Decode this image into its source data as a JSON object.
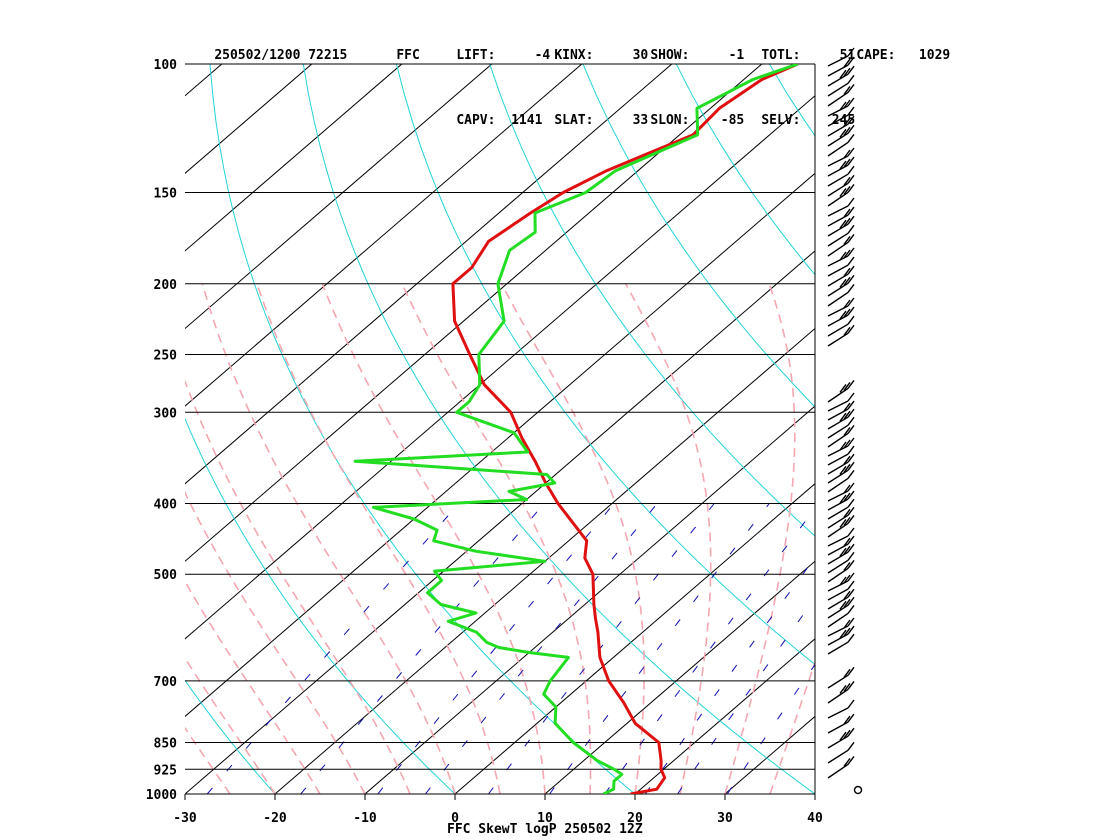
{
  "header": {
    "line1": [
      {
        "key": "id",
        "text": "250502/1200 72215"
      },
      {
        "key": "stn",
        "text": "FFC"
      },
      {
        "key": "lift",
        "text": "LIFT:     -4"
      },
      {
        "key": "kinx",
        "text": "KINX:     30"
      },
      {
        "key": "show",
        "text": "SHOW:     -1"
      },
      {
        "key": "totl",
        "text": "TOTL:     51"
      },
      {
        "key": "cape",
        "text": "CAPE:   1029"
      }
    ],
    "line2": [
      {
        "key": "capv",
        "text": "CAPV:  1141"
      },
      {
        "key": "slat",
        "text": "SLAT:     33"
      },
      {
        "key": "slon",
        "text": "SLON:    -85"
      },
      {
        "key": "selv",
        "text": "SELV:    245"
      }
    ]
  },
  "footer": "FFC SkewT logP 250502 12Z",
  "chart_data": {
    "type": "line",
    "subtype": "skew-T log-P",
    "pressure_levels": [
      100,
      150,
      200,
      250,
      300,
      400,
      500,
      700,
      850,
      925,
      1000
    ],
    "pressure_labels": [
      "100",
      "150",
      "200",
      "250",
      "300",
      "400",
      "500",
      "700",
      "850",
      "925",
      "1000"
    ],
    "xlim": [
      -30,
      40
    ],
    "x_ticks": [
      -30,
      -20,
      -10,
      0,
      10,
      20,
      30,
      40
    ],
    "x_tick_labels": [
      "-30",
      "-20",
      "-10",
      "0",
      "10",
      "20",
      "30",
      "40"
    ],
    "ylim_hpa": [
      1000,
      100
    ],
    "grid": true,
    "colors": {
      "temperature": "#e01010",
      "dewpoint": "#22dd22",
      "isotherm": "#000000",
      "dry_adiabat": "#22d3d8",
      "moist_adiabat": "#f4a7b0",
      "mixing_ratio": "#1010b0",
      "wind_barb": "#000000"
    },
    "series": [
      {
        "key": "temperature",
        "pressure": [
          1000,
          985,
          950,
          925,
          900,
          850,
          800,
          750,
          700,
          650,
          600,
          575,
          550,
          500,
          475,
          450,
          400,
          375,
          350,
          325,
          300,
          275,
          250,
          225,
          200,
          190,
          175,
          160,
          150,
          140,
          125,
          115,
          105,
          100
        ],
        "values": [
          19.5,
          21.8,
          21.2,
          19.7,
          18.6,
          16.0,
          10.9,
          7.0,
          2.5,
          -1.5,
          -5.0,
          -7.0,
          -9.0,
          -13.0,
          -16.0,
          -18.0,
          -26.0,
          -30.0,
          -34.0,
          -38.5,
          -43.0,
          -49.5,
          -55.0,
          -61.0,
          -66.0,
          -66.0,
          -67.5,
          -66.5,
          -65.5,
          -63.5,
          -58.5,
          -59.0,
          -58.0,
          -56.0
        ]
      },
      {
        "key": "dewpoint",
        "pressure": [
          1000,
          985,
          960,
          940,
          925,
          900,
          850,
          800,
          760,
          730,
          700,
          650,
          640,
          630,
          620,
          600,
          580,
          565,
          550,
          530,
          510,
          495,
          480,
          465,
          450,
          435,
          420,
          405,
          395,
          385,
          375,
          365,
          350,
          340,
          320,
          300,
          290,
          275,
          250,
          225,
          200,
          180,
          170,
          160,
          150,
          140,
          125,
          115,
          105,
          100
        ],
        "values": [
          16.5,
          17.0,
          16.0,
          16.0,
          14.5,
          11.5,
          6.5,
          2.0,
          0.0,
          -3.0,
          -4.0,
          -5.0,
          -10.0,
          -14.0,
          -16.0,
          -18.5,
          -23.0,
          -21.0,
          -26.0,
          -29.0,
          -29.0,
          -31.0,
          -20.0,
          -29.0,
          -35.0,
          -36.0,
          -40.0,
          -46.0,
          -30.0,
          -33.0,
          -29.0,
          -31.0,
          -54.0,
          -36.0,
          -40.0,
          -49.0,
          -49.0,
          -50.0,
          -54.0,
          -55.5,
          -61.0,
          -64.0,
          -63.5,
          -66.0,
          -63.0,
          -62.5,
          -58.0,
          -61.5,
          -59.0,
          -56.0
        ]
      }
    ],
    "wind_barbs_present": true
  }
}
